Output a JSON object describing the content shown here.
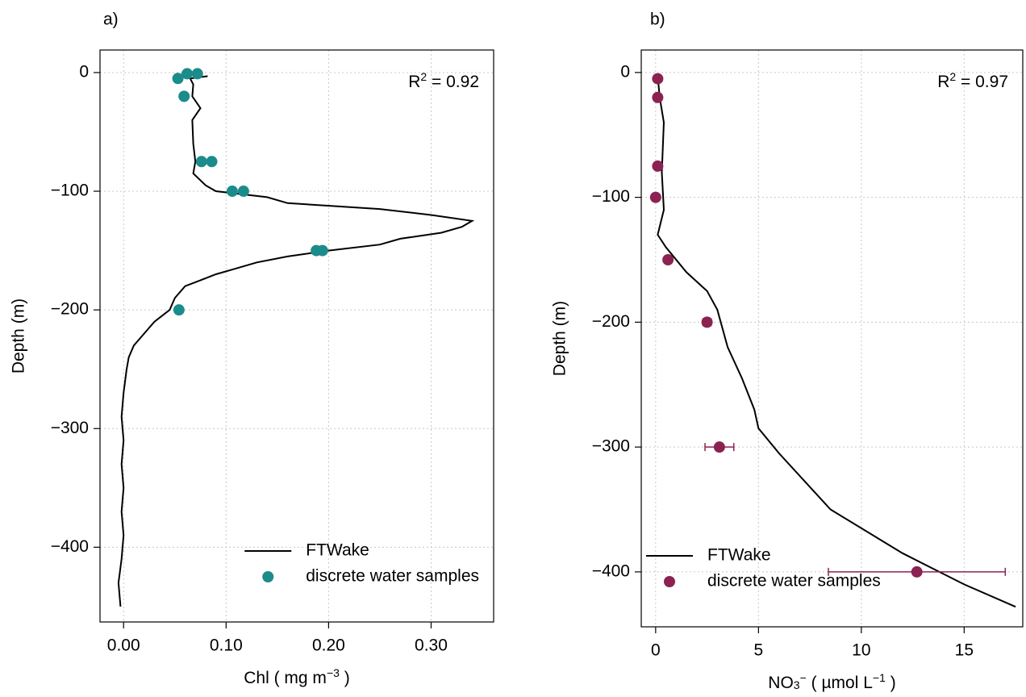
{
  "chart_data": [
    {
      "type": "line",
      "title": "a)",
      "annotation": [
        {
          "text": "R",
          "style": "base"
        },
        {
          "text": "2",
          "style": "sup"
        },
        {
          "text": " = 0.92",
          "style": "base"
        }
      ],
      "xlabel": [
        {
          "text": "Chl ( mg m",
          "style": "base"
        },
        {
          "text": "−3",
          "style": "sup"
        },
        {
          "text": " )",
          "style": "base"
        }
      ],
      "ylabel": "Depth (m)",
      "xlim": [
        -0.023,
        0.361
      ],
      "ylim": [
        -463,
        19
      ],
      "xticks": [
        {
          "value": 0,
          "label": "0.00"
        },
        {
          "value": 0.1,
          "label": "0.10"
        },
        {
          "value": 0.2,
          "label": "0.20"
        },
        {
          "value": 0.3,
          "label": "0.30"
        }
      ],
      "yticks": [
        0,
        {
          "value": -100,
          "label": "−100"
        },
        {
          "value": -200,
          "label": "−200"
        },
        {
          "value": -300,
          "label": "−300"
        },
        {
          "value": -400,
          "label": "−400"
        }
      ],
      "grid": true,
      "legend": "bottom right",
      "series": [
        {
          "name": "FTWake",
          "type": "line",
          "color": "#000000",
          "x": [
            0.082,
            0.065,
            0.068,
            0.067,
            0.075,
            0.067,
            0.068,
            0.07,
            0.068,
            0.08,
            0.09,
            0.14,
            0.16,
            0.25,
            0.3,
            0.34,
            0.33,
            0.31,
            0.27,
            0.25,
            0.2,
            0.16,
            0.13,
            0.11,
            0.09,
            0.075,
            0.06,
            0.05,
            0.045,
            0.03,
            0.02,
            0.01,
            0.005,
            0.003,
            0.0,
            -0.002,
            0.0,
            -0.002,
            0.0,
            -0.002,
            0.0,
            -0.002,
            -0.005,
            -0.003
          ],
          "y": [
            -3,
            -5,
            -10,
            -20,
            -30,
            -40,
            -60,
            -75,
            -85,
            -95,
            -100,
            -105,
            -110,
            -115,
            -120,
            -125,
            -130,
            -135,
            -140,
            -145,
            -150,
            -155,
            -160,
            -165,
            -170,
            -175,
            -180,
            -190,
            -200,
            -210,
            -220,
            -230,
            -240,
            -250,
            -270,
            -290,
            -310,
            -330,
            -350,
            -370,
            -390,
            -410,
            -430,
            -450
          ]
        },
        {
          "name": "discrete water samples",
          "type": "scatter",
          "color": "#1b8b8b",
          "x": [
            0.053,
            0.062,
            0.072,
            0.059,
            0.076,
            0.086,
            0.106,
            0.117,
            0.188,
            0.194,
            0.054
          ],
          "y": [
            -5,
            -1,
            -1,
            -20,
            -75,
            -75,
            -100,
            -100,
            -150,
            -150,
            -200
          ]
        }
      ]
    },
    {
      "type": "line",
      "title": "b)",
      "annotation": [
        {
          "text": "R",
          "style": "base"
        },
        {
          "text": "2",
          "style": "sup"
        },
        {
          "text": " = 0.97",
          "style": "base"
        }
      ],
      "xlabel": [
        {
          "text": "NO",
          "style": "base"
        },
        {
          "text": "3",
          "style": "sub"
        },
        {
          "text": "−",
          "style": "sup"
        },
        {
          "text": " ( µmol L",
          "style": "base"
        },
        {
          "text": "−1",
          "style": "sup"
        },
        {
          "text": " )",
          "style": "base"
        }
      ],
      "ylabel": "Depth (m)",
      "xlim": [
        -0.7,
        17.85
      ],
      "ylim": [
        -444,
        18
      ],
      "xticks": [
        0,
        5,
        10,
        15
      ],
      "yticks": [
        0,
        {
          "value": -100,
          "label": "−100"
        },
        {
          "value": -200,
          "label": "−200"
        },
        {
          "value": -300,
          "label": "−300"
        },
        {
          "value": -400,
          "label": "−400"
        }
      ],
      "grid": true,
      "legend": "bottom left",
      "series": [
        {
          "name": "FTWake",
          "type": "line",
          "color": "#000000",
          "x": [
            0.1,
            0.2,
            0.4,
            0.3,
            0.4,
            0.1,
            0.5,
            1.5,
            2.5,
            3.0,
            3.5,
            4.2,
            4.8,
            5.0,
            6.0,
            8.5,
            12.0,
            15.0,
            17.5
          ],
          "y": [
            -3,
            -20,
            -40,
            -80,
            -110,
            -130,
            -140,
            -160,
            -175,
            -190,
            -220,
            -245,
            -270,
            -285,
            -305,
            -350,
            -385,
            -410,
            -428
          ]
        },
        {
          "name": "discrete water samples",
          "type": "scatter",
          "color": "#8b2252",
          "x": [
            0.1,
            0.1,
            0.1,
            0.0,
            0.6,
            2.5,
            3.1,
            12.7
          ],
          "y": [
            -5,
            -20,
            -75,
            -100,
            -150,
            -200,
            -300,
            -400
          ],
          "errors": [
            null,
            null,
            null,
            null,
            null,
            0.2,
            0.7,
            4.3
          ]
        }
      ]
    }
  ]
}
